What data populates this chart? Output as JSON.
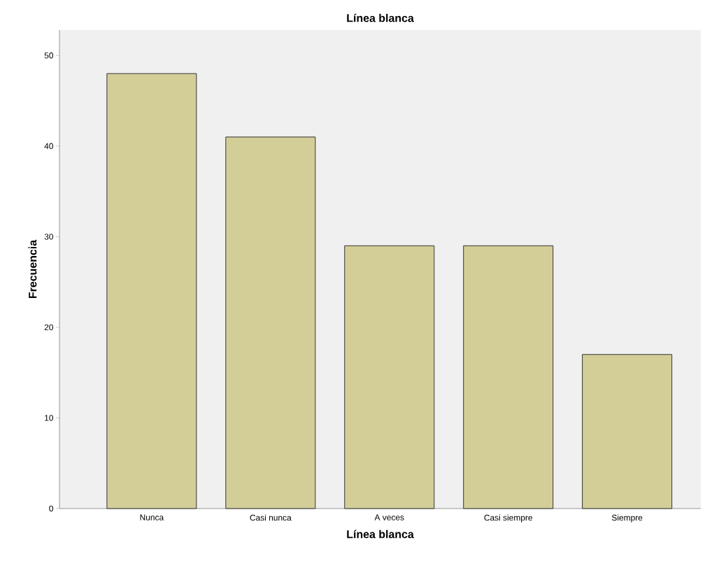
{
  "chart_data": {
    "type": "bar",
    "title": "Línea blanca",
    "xlabel": "Línea blanca",
    "ylabel": "Frecuencia",
    "categories": [
      "Nunca",
      "Casi nunca",
      "A veces",
      "Casi siempre",
      "Siempre"
    ],
    "values": [
      48,
      41,
      29,
      29,
      17
    ],
    "color": "#d3ce98",
    "ylim": [
      0,
      52.8
    ],
    "yticks": [
      0,
      10,
      20,
      30,
      40,
      50
    ],
    "grid": false
  }
}
